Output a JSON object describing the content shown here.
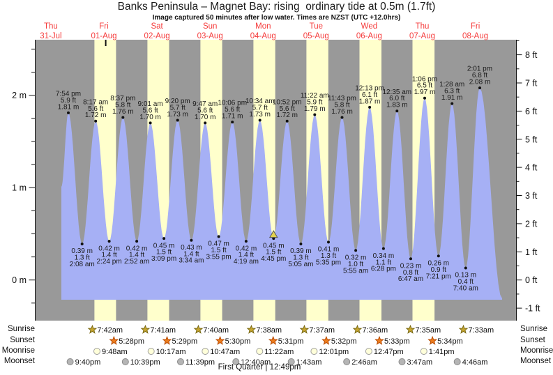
{
  "title": "Banks Peninsula – Magnet Bay: rising  ordinary tide at 0.5m (1.7ft)",
  "subtitle": "Image captured 50 minutes after low water. Times are NZST (UTC +12.0hrs)",
  "colors": {
    "plot_night_gray": "#999999",
    "plot_day_yellow": "#ffffcc",
    "tide_fill_blue": "#a6b0f5",
    "date_red": "#f53b3b",
    "sunrise_star_fill": "#c6a52f",
    "sunrise_star_stroke": "#7a6a14",
    "sunset_star_fill": "#ed7c1c",
    "sunset_star_stroke": "#b84a00",
    "moonrise_fill": "#ffffda",
    "moonrise_stroke": "#a0a0a0",
    "moonset_fill": "#b5b5b5",
    "moonset_stroke": "#8a8a8a",
    "marker_yellow": "#e3d24f",
    "text_black": "#111111"
  },
  "chart_data": {
    "type": "area",
    "title": "Banks Peninsula – Magnet Bay: rising  ordinary tide at 0.5m (1.7ft)",
    "ylabel_left_unit": "m",
    "ylabel_right_unit": "ft",
    "ylim_m": [
      -0.45,
      2.6
    ],
    "grid": false,
    "days": [
      {
        "name": "Thu",
        "date": "31-Jul"
      },
      {
        "name": "Fri",
        "date": "01-Aug"
      },
      {
        "name": "Sat",
        "date": "02-Aug"
      },
      {
        "name": "Sun",
        "date": "03-Aug"
      },
      {
        "name": "Mon",
        "date": "04-Aug"
      },
      {
        "name": "Tue",
        "date": "05-Aug"
      },
      {
        "name": "Wed",
        "date": "06-Aug"
      },
      {
        "name": "Thu",
        "date": "07-Aug"
      },
      {
        "name": "Fri",
        "date": "08-Aug"
      }
    ],
    "left_ticks": [
      {
        "v": 0,
        "label": "0 m"
      },
      {
        "v": 1,
        "label": "1 m"
      },
      {
        "v": 2,
        "label": "2 m"
      }
    ],
    "right_ticks": [
      {
        "v": -1,
        "label": "-1 ft"
      },
      {
        "v": 0,
        "label": "0 ft"
      },
      {
        "v": 1,
        "label": "1 ft"
      },
      {
        "v": 2,
        "label": "2 ft"
      },
      {
        "v": 3,
        "label": "3 ft"
      },
      {
        "v": 4,
        "label": "4 ft"
      },
      {
        "v": 5,
        "label": "5 ft"
      },
      {
        "v": 6,
        "label": "6 ft"
      },
      {
        "v": 7,
        "label": "7 ft"
      },
      {
        "v": 8,
        "label": "8 ft"
      }
    ],
    "tide_events": [
      {
        "type": "high",
        "day": "31-Jul",
        "time": "7:54 pm",
        "height_m": 1.81,
        "height_ft": 5.9,
        "m_label": "1.81 m",
        "ft_label": "5.9 ft"
      },
      {
        "type": "low",
        "day": "01-Aug",
        "time": "2:08 am",
        "height_m": 0.39,
        "height_ft": 1.3,
        "m_label": "0.39 m",
        "ft_label": "1.3 ft"
      },
      {
        "type": "high",
        "day": "01-Aug",
        "time": "8:17 am",
        "height_m": 1.72,
        "height_ft": 5.6,
        "m_label": "1.72 m",
        "ft_label": "5.6 ft"
      },
      {
        "type": "low",
        "day": "01-Aug",
        "time": "2:24 pm",
        "height_m": 0.42,
        "height_ft": 1.4,
        "m_label": "0.42 m",
        "ft_label": "1.4 ft"
      },
      {
        "type": "high",
        "day": "01-Aug",
        "time": "8:37 pm",
        "height_m": 1.76,
        "height_ft": 5.8,
        "m_label": "1.76 m",
        "ft_label": "5.8 ft"
      },
      {
        "type": "low",
        "day": "02-Aug",
        "time": "2:52 am",
        "height_m": 0.42,
        "height_ft": 1.4,
        "m_label": "0.42 m",
        "ft_label": "1.4 ft"
      },
      {
        "type": "high",
        "day": "02-Aug",
        "time": "9:01 am",
        "height_m": 1.7,
        "height_ft": 5.6,
        "m_label": "1.70 m",
        "ft_label": "5.6 ft"
      },
      {
        "type": "low",
        "day": "02-Aug",
        "time": "3:09 pm",
        "height_m": 0.45,
        "height_ft": 1.5,
        "m_label": "0.45 m",
        "ft_label": "1.5 ft"
      },
      {
        "type": "high",
        "day": "02-Aug",
        "time": "9:20 pm",
        "height_m": 1.73,
        "height_ft": 5.7,
        "m_label": "1.73 m",
        "ft_label": "5.7 ft"
      },
      {
        "type": "low",
        "day": "03-Aug",
        "time": "3:34 am",
        "height_m": 0.43,
        "height_ft": 1.4,
        "m_label": "0.43 m",
        "ft_label": "1.4 ft"
      },
      {
        "type": "high",
        "day": "03-Aug",
        "time": "9:47 am",
        "height_m": 1.7,
        "height_ft": 5.6,
        "m_label": "1.70 m",
        "ft_label": "5.6 ft"
      },
      {
        "type": "low",
        "day": "03-Aug",
        "time": "3:55 pm",
        "height_m": 0.47,
        "height_ft": 1.5,
        "m_label": "0.47 m",
        "ft_label": "1.5 ft"
      },
      {
        "type": "high",
        "day": "03-Aug",
        "time": "10:06 pm",
        "height_m": 1.71,
        "height_ft": 5.6,
        "m_label": "1.71 m",
        "ft_label": "5.6 ft"
      },
      {
        "type": "low",
        "day": "04-Aug",
        "time": "4:19 am",
        "height_m": 0.42,
        "height_ft": 1.4,
        "m_label": "0.42 m",
        "ft_label": "1.4 ft"
      },
      {
        "type": "high",
        "day": "04-Aug",
        "time": "10:34 am",
        "height_m": 1.73,
        "height_ft": 5.7,
        "m_label": "1.73 m",
        "ft_label": "5.7 ft"
      },
      {
        "type": "low",
        "day": "04-Aug",
        "time": "4:45 pm",
        "height_m": 0.45,
        "height_ft": 1.5,
        "m_label": "0.45 m",
        "ft_label": "1.5 ft"
      },
      {
        "type": "high",
        "day": "04-Aug",
        "time": "10:52 pm",
        "height_m": 1.72,
        "height_ft": 5.6,
        "m_label": "1.72 m",
        "ft_label": "5.6 ft"
      },
      {
        "type": "low",
        "day": "05-Aug",
        "time": "5:05 am",
        "height_m": 0.39,
        "height_ft": 1.3,
        "m_label": "0.39 m",
        "ft_label": "1.3 ft"
      },
      {
        "type": "high",
        "day": "05-Aug",
        "time": "11:22 am",
        "height_m": 1.79,
        "height_ft": 5.9,
        "m_label": "1.79 m",
        "ft_label": "5.9 ft"
      },
      {
        "type": "low",
        "day": "05-Aug",
        "time": "5:35 pm",
        "height_m": 0.41,
        "height_ft": 1.3,
        "m_label": "0.41 m",
        "ft_label": "1.3 ft"
      },
      {
        "type": "high",
        "day": "05-Aug",
        "time": "11:43 pm",
        "height_m": 1.76,
        "height_ft": 5.8,
        "m_label": "1.76 m",
        "ft_label": "5.8 ft"
      },
      {
        "type": "low",
        "day": "06-Aug",
        "time": "5:55 am",
        "height_m": 0.32,
        "height_ft": 1.0,
        "m_label": "0.32 m",
        "ft_label": "1.0 ft"
      },
      {
        "type": "high",
        "day": "06-Aug",
        "time": "12:13 pm",
        "height_m": 1.87,
        "height_ft": 6.1,
        "m_label": "1.87 m",
        "ft_label": "6.1 ft"
      },
      {
        "type": "low",
        "day": "06-Aug",
        "time": "6:28 pm",
        "height_m": 0.34,
        "height_ft": 1.1,
        "m_label": "0.34 m",
        "ft_label": "1.1 ft"
      },
      {
        "type": "high",
        "day": "07-Aug",
        "time": "12:35 am",
        "height_m": 1.83,
        "height_ft": 6.0,
        "m_label": "1.83 m",
        "ft_label": "6.0 ft"
      },
      {
        "type": "low",
        "day": "07-Aug",
        "time": "6:47 am",
        "height_m": 0.23,
        "height_ft": 0.8,
        "m_label": "0.23 m",
        "ft_label": "0.8 ft"
      },
      {
        "type": "high",
        "day": "07-Aug",
        "time": "1:06 pm",
        "height_m": 1.97,
        "height_ft": 6.5,
        "m_label": "1.97 m",
        "ft_label": "6.5 ft"
      },
      {
        "type": "low",
        "day": "07-Aug",
        "time": "7:21 pm",
        "height_m": 0.26,
        "height_ft": 0.9,
        "m_label": "0.26 m",
        "ft_label": "0.9 ft"
      },
      {
        "type": "high",
        "day": "08-Aug",
        "time": "1:28 am",
        "height_m": 1.91,
        "height_ft": 6.3,
        "m_label": "1.91 m",
        "ft_label": "6.3 ft"
      },
      {
        "type": "low",
        "day": "08-Aug",
        "time": "7:40 am",
        "height_m": 0.13,
        "height_ft": 0.4,
        "m_label": "0.13 m",
        "ft_label": "0.4 ft"
      },
      {
        "type": "high",
        "day": "08-Aug",
        "time": "2:01 pm",
        "height_m": 2.08,
        "height_ft": 6.8,
        "m_label": "2.08 m",
        "ft_label": "6.8 ft"
      }
    ],
    "current_marker": {
      "event_index": 15,
      "note": "yellow triangle at 4:45 pm 04-Aug low"
    },
    "astro": {
      "sunrise": {
        "label": "Sunrise",
        "events": [
          {
            "day": "01-Aug",
            "time": "7:42am"
          },
          {
            "day": "02-Aug",
            "time": "7:41am"
          },
          {
            "day": "03-Aug",
            "time": "7:40am"
          },
          {
            "day": "04-Aug",
            "time": "7:38am"
          },
          {
            "day": "05-Aug",
            "time": "7:37am"
          },
          {
            "day": "06-Aug",
            "time": "7:36am"
          },
          {
            "day": "07-Aug",
            "time": "7:35am"
          },
          {
            "day": "08-Aug",
            "time": "7:33am"
          }
        ]
      },
      "sunset": {
        "label": "Sunset",
        "events": [
          {
            "day": "01-Aug",
            "time": "5:28pm"
          },
          {
            "day": "02-Aug",
            "time": "5:29pm"
          },
          {
            "day": "03-Aug",
            "time": "5:30pm"
          },
          {
            "day": "04-Aug",
            "time": "5:31pm"
          },
          {
            "day": "05-Aug",
            "time": "5:32pm"
          },
          {
            "day": "06-Aug",
            "time": "5:33pm"
          },
          {
            "day": "07-Aug",
            "time": "5:34pm"
          }
        ]
      },
      "moonrise": {
        "label": "Moonrise",
        "events": [
          {
            "day": "01-Aug",
            "time": "9:48am"
          },
          {
            "day": "02-Aug",
            "time": "10:17am"
          },
          {
            "day": "03-Aug",
            "time": "10:47am"
          },
          {
            "day": "04-Aug",
            "time": "11:22am"
          },
          {
            "day": "05-Aug",
            "time": "12:01pm"
          },
          {
            "day": "06-Aug",
            "time": "12:47pm"
          },
          {
            "day": "07-Aug",
            "time": "1:41pm"
          }
        ]
      },
      "moonset": {
        "label": "Moonset",
        "events": [
          {
            "day": "31-Jul",
            "time": "9:40pm"
          },
          {
            "day": "01-Aug",
            "time": "10:39pm"
          },
          {
            "day": "02-Aug",
            "time": "11:39pm"
          },
          {
            "day": "04-Aug",
            "time": "12:40am"
          },
          {
            "day": "05-Aug",
            "time": "1:43am"
          },
          {
            "day": "06-Aug",
            "time": "2:46am"
          },
          {
            "day": "07-Aug",
            "time": "3:47am"
          },
          {
            "day": "08-Aug",
            "time": "4:46am"
          }
        ]
      }
    },
    "moon_phase": {
      "text": "First Quarter | 12:49pm",
      "day": "01-Aug",
      "time": "12:49pm"
    }
  }
}
